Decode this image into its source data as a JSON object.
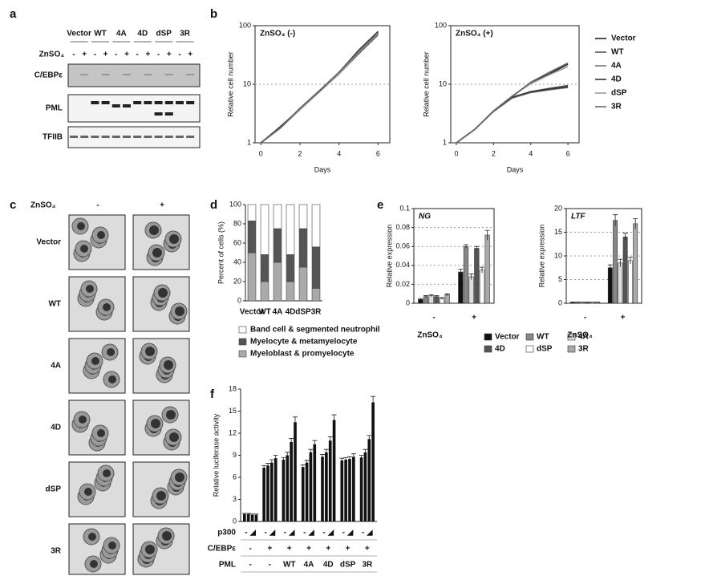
{
  "panel_a": {
    "label": "a",
    "lanes": [
      "Vector",
      "WT",
      "4A",
      "4D",
      "dSP",
      "3R"
    ],
    "treatment": "ZnSO₄",
    "treatment_signs": [
      "-",
      "+"
    ],
    "blots": [
      "C/EBPε",
      "PML",
      "TFIIB"
    ]
  },
  "panel_c": {
    "label": "c",
    "treatment": "ZnSO₄",
    "columns": [
      "-",
      "+"
    ],
    "rows": [
      "Vector",
      "WT",
      "4A",
      "4D",
      "dSP",
      "3R"
    ]
  },
  "chart_data": [
    {
      "type": "line",
      "panel": "b",
      "title": "ZnSO₄ (-)",
      "xlabel": "Days",
      "ylabel": "Relative cell number",
      "log_scale": true,
      "grid": true,
      "x": [
        0,
        1,
        2,
        3,
        4,
        5,
        6
      ],
      "xlim": [
        -0.3,
        6.6
      ],
      "xticks": [
        0,
        2,
        4,
        6
      ],
      "ylim": [
        1,
        100
      ],
      "yticks": [
        1,
        10,
        100
      ],
      "series": [
        {
          "name": "Vector",
          "color": "#222222",
          "values": [
            1,
            1.8,
            3.8,
            7.5,
            15,
            33,
            70
          ]
        },
        {
          "name": "WT",
          "color": "#555555",
          "values": [
            1,
            1.8,
            3.9,
            7.8,
            16,
            38,
            80
          ]
        },
        {
          "name": "4A",
          "color": "#777777",
          "values": [
            1,
            1.8,
            3.7,
            7.4,
            15,
            35,
            75
          ]
        },
        {
          "name": "4D",
          "color": "#333333",
          "values": [
            1,
            1.9,
            3.8,
            7.6,
            16,
            37,
            78
          ]
        },
        {
          "name": "dSP",
          "color": "#999999",
          "values": [
            1,
            1.8,
            3.8,
            7.5,
            15,
            34,
            72
          ]
        },
        {
          "name": "3R",
          "color": "#666666",
          "values": [
            1,
            1.8,
            3.9,
            7.7,
            16,
            36,
            76
          ]
        }
      ]
    },
    {
      "type": "line",
      "title": "ZnSO₄ (+)",
      "xlabel": "Days",
      "ylabel": "Relative cell number",
      "log_scale": true,
      "grid": true,
      "legend": "right",
      "x": [
        0,
        1,
        2,
        3,
        4,
        5,
        6
      ],
      "xlim": [
        -0.3,
        6.6
      ],
      "xticks": [
        0,
        2,
        4,
        6
      ],
      "ylim": [
        1,
        100
      ],
      "yticks": [
        1,
        10,
        100
      ],
      "series": [
        {
          "name": "Vector",
          "color": "#222222",
          "values": [
            1,
            1.7,
            3.5,
            6.2,
            10.5,
            15,
            22
          ]
        },
        {
          "name": "WT",
          "color": "#555555",
          "values": [
            1,
            1.7,
            3.5,
            6,
            7.5,
            8.5,
            9.5
          ]
        },
        {
          "name": "4A",
          "color": "#777777",
          "values": [
            1,
            1.7,
            3.4,
            5.8,
            7.2,
            8,
            8.8
          ]
        },
        {
          "name": "4D",
          "color": "#333333",
          "values": [
            1,
            1.7,
            3.5,
            6,
            7.4,
            8.3,
            9
          ]
        },
        {
          "name": "dSP",
          "color": "#999999",
          "values": [
            1,
            1.7,
            3.5,
            6.3,
            10.2,
            14.5,
            20
          ]
        },
        {
          "name": "3R",
          "color": "#666666",
          "values": [
            1,
            1.7,
            3.5,
            6.2,
            10.8,
            16,
            23
          ]
        }
      ]
    },
    {
      "type": "stacked_bar",
      "panel": "d",
      "ylabel": "Percent of cells (%)",
      "categories": [
        "Vector",
        "WT",
        "4A",
        "4D",
        "dSP",
        "3R"
      ],
      "ylim": [
        0,
        100
      ],
      "yticks": [
        0,
        20,
        40,
        60,
        80,
        100
      ],
      "series": [
        {
          "name": "Myeloblast & promyelocyte",
          "color": "#aaaaaa",
          "values": [
            50,
            20,
            40,
            20,
            35,
            13
          ]
        },
        {
          "name": "Myelocyte & metamyelocyte",
          "color": "#555555",
          "values": [
            33,
            28,
            35,
            28,
            40,
            43
          ]
        },
        {
          "name": "Band cell & segmented neutrophil",
          "color": "#ffffff",
          "values": [
            17,
            52,
            25,
            52,
            25,
            44
          ]
        }
      ]
    },
    {
      "type": "grouped_bar",
      "panel": "e",
      "title": "NG",
      "xlabel": "ZnSO₄",
      "ylabel": "Relative expression",
      "legend": true,
      "grid": true,
      "categories": [
        "-",
        "+"
      ],
      "ylim": [
        0,
        0.1
      ],
      "yticks": [
        0,
        0.02,
        0.04,
        0.06,
        0.08,
        0.1
      ],
      "series": [
        {
          "name": "Vector",
          "color": "#111111",
          "values": [
            0.004,
            0.033
          ],
          "errors": [
            0.001,
            0.003
          ]
        },
        {
          "name": "WT",
          "color": "#888888",
          "values": [
            0.007,
            0.06
          ],
          "errors": [
            0.001,
            0.002
          ]
        },
        {
          "name": "4A",
          "color": "#dddddd",
          "values": [
            0.008,
            0.028
          ],
          "errors": [
            0.001,
            0.003
          ]
        },
        {
          "name": "4D",
          "color": "#555555",
          "values": [
            0.007,
            0.058
          ],
          "errors": [
            0.001,
            0.002
          ]
        },
        {
          "name": "dSP",
          "color": "#ffffff",
          "values": [
            0.005,
            0.035
          ],
          "errors": [
            0.001,
            0.003
          ]
        },
        {
          "name": "3R",
          "color": "#aaaaaa",
          "values": [
            0.009,
            0.072
          ],
          "errors": [
            0.001,
            0.005
          ]
        }
      ]
    },
    {
      "type": "grouped_bar",
      "title": "LTF",
      "xlabel": "ZnSO₄",
      "ylabel": "Relative expression",
      "grid": true,
      "categories": [
        "-",
        "+"
      ],
      "ylim": [
        0,
        20
      ],
      "yticks": [
        0,
        5,
        10,
        15,
        20
      ],
      "series": [
        {
          "color": "#111111",
          "values": [
            0.2,
            7.5
          ],
          "errors": [
            0.05,
            0.6
          ]
        },
        {
          "color": "#888888",
          "values": [
            0.2,
            17.5
          ],
          "errors": [
            0.05,
            1.2
          ]
        },
        {
          "color": "#dddddd",
          "values": [
            0.2,
            8.5
          ],
          "errors": [
            0.05,
            0.8
          ]
        },
        {
          "color": "#555555",
          "values": [
            0.2,
            14
          ],
          "errors": [
            0.05,
            0.8
          ]
        },
        {
          "color": "#ffffff",
          "values": [
            0.2,
            9
          ],
          "errors": [
            0.05,
            0.7
          ]
        },
        {
          "color": "#aaaaaa",
          "values": [
            0.2,
            16.8
          ],
          "errors": [
            0.05,
            1.1
          ]
        }
      ]
    },
    {
      "type": "bar",
      "panel": "f",
      "ylabel": "Relative luciferase activity",
      "color": "#111111",
      "group_size": 4,
      "ylim": [
        0,
        18
      ],
      "yticks": [
        0,
        3,
        6,
        9,
        12,
        15,
        18
      ],
      "values": [
        1,
        1,
        0.9,
        0.9,
        7.3,
        7.6,
        8,
        8.6,
        8.4,
        9,
        10.8,
        13.5,
        7.4,
        8,
        9.4,
        10.5,
        8.8,
        9.4,
        11,
        13.8,
        8.3,
        8.4,
        8.5,
        8.8,
        8.7,
        9.4,
        11.2,
        16.2
      ],
      "errors": [
        0.1,
        0.1,
        0.1,
        0.1,
        0.3,
        0.3,
        0.4,
        0.4,
        0.3,
        0.4,
        0.5,
        0.7,
        0.3,
        0.3,
        0.4,
        0.5,
        0.3,
        0.4,
        0.5,
        0.7,
        0.3,
        0.3,
        0.3,
        0.4,
        0.3,
        0.4,
        0.5,
        0.8
      ],
      "rows": [
        {
          "label": "p300",
          "cells": [
            "- ◢",
            "- ◢",
            "- ◢",
            "- ◢",
            "- ◢",
            "- ◢",
            "- ◢"
          ]
        },
        {
          "label": "C/EBPε",
          "cells": [
            "-",
            "+",
            "+",
            "+",
            "+",
            "+",
            "+"
          ]
        },
        {
          "label": "PML",
          "cells": [
            "-",
            "-",
            "WT",
            "4A",
            "4D",
            "dSP",
            "3R"
          ]
        }
      ]
    }
  ]
}
